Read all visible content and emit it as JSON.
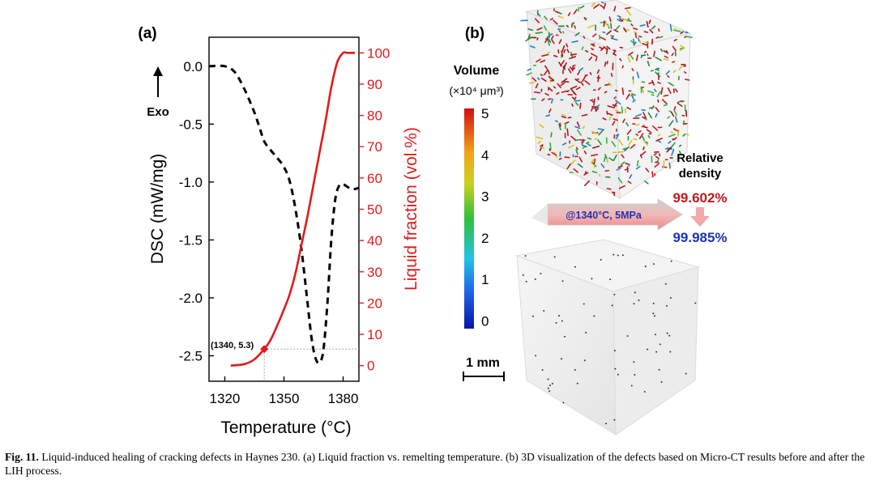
{
  "panel_a": {
    "label": "(a)",
    "exo_label": "Exo",
    "annotation": "(1340, 5.3)"
  },
  "panel_b": {
    "label": "(b)",
    "colorbar_title": "Volume",
    "colorbar_unit": "(×10⁴ μm³)",
    "colorbar_ticks": [
      "5",
      "4",
      "3",
      "2",
      "1",
      "0"
    ],
    "scale_bar_label": "1 mm",
    "arrow_label": "@1340°C, 5MPa",
    "density_title_line1": "Relative",
    "density_title_line2": "density",
    "density_before": "99.602%",
    "density_after": "99.985%",
    "colors": {
      "before": "#c0191e",
      "after": "#1c33b8",
      "arrow": "#f0a8a8"
    }
  },
  "chart_data": {
    "type": "line",
    "xlabel": "Temperature (°C)",
    "xlim": [
      1312,
      1388
    ],
    "xticks": [
      "1320",
      "1350",
      "1380"
    ],
    "y_left": {
      "label": "DSC (mW/mg)",
      "ylim": [
        -2.72,
        0.25
      ],
      "ticks": [
        "0.0",
        "-0.5",
        "-1.0",
        "-1.5",
        "-2.0",
        "-2.5"
      ]
    },
    "y_right": {
      "label": "Liquid fraction (vol.%)",
      "ylim": [
        -5,
        105
      ],
      "ticks": [
        "0",
        "10",
        "20",
        "30",
        "40",
        "50",
        "60",
        "70",
        "80",
        "90",
        "100"
      ],
      "color": "#e01b1b"
    },
    "series": [
      {
        "axis": "left",
        "style": "dashed",
        "color": "#000000",
        "x": [
          1312,
          1320,
          1325,
          1330,
          1335,
          1338,
          1340,
          1343,
          1346,
          1350,
          1353,
          1356,
          1359,
          1362,
          1364,
          1366,
          1368,
          1370,
          1372,
          1374,
          1376,
          1378,
          1380,
          1382,
          1384,
          1386,
          1388
        ],
        "y": [
          0.0,
          0.0,
          -0.05,
          -0.2,
          -0.4,
          -0.55,
          -0.65,
          -0.72,
          -0.78,
          -0.87,
          -1.0,
          -1.25,
          -1.6,
          -2.05,
          -2.35,
          -2.52,
          -2.56,
          -2.45,
          -2.05,
          -1.5,
          -1.15,
          -1.03,
          -1.02,
          -1.04,
          -1.06,
          -1.06,
          -1.05
        ]
      },
      {
        "axis": "right",
        "style": "solid",
        "color": "#e01b1b",
        "x": [
          1323,
          1330,
          1335,
          1340,
          1343,
          1346,
          1350,
          1353,
          1356,
          1359,
          1362,
          1365,
          1368,
          1371,
          1374,
          1377,
          1380,
          1382,
          1386
        ],
        "y": [
          0,
          0.5,
          2,
          5.3,
          8,
          12,
          18,
          23,
          30,
          39,
          48,
          58,
          68,
          78,
          89,
          97,
          100,
          100,
          100
        ]
      }
    ],
    "markers": [
      {
        "axis": "right",
        "x": 1340,
        "y": 5.3,
        "color": "#e01b1b",
        "shape": "diamond"
      }
    ]
  },
  "caption": {
    "fig_label": "Fig. 11.",
    "text": "Liquid-induced healing of cracking defects in Haynes 230. (a) Liquid fraction vs. remelting temperature. (b) 3D visualization of the defects based on Micro-CT results before and after the LIH process."
  }
}
